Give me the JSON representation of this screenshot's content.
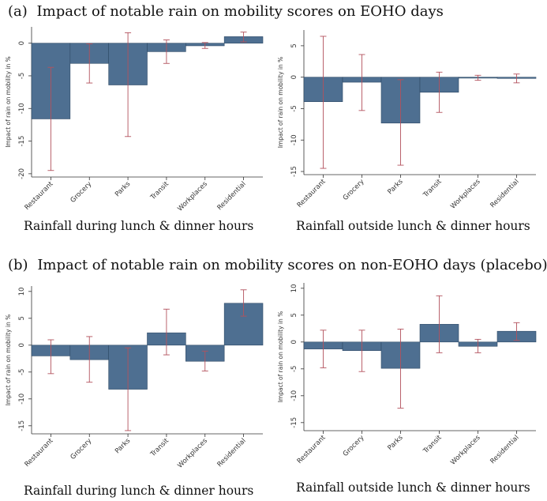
{
  "section_a": {
    "tag": "(a)",
    "title": "Impact of notable rain on mobility scores on EOHO days"
  },
  "section_b": {
    "tag": "(b)",
    "title": "Impact of notable rain on mobility scores on non-EOHO days (placebo)"
  },
  "colors": {
    "bar": "#4e6f91",
    "bar_edge": "#2f4a66",
    "whisker": "#b3525d",
    "axis": "#333333",
    "tick_text": "#333333"
  },
  "chart_data": [
    {
      "type": "bar",
      "panel": "a-left",
      "caption": "Rainfall during lunch & dinner hours",
      "ylabel": "Impact of rain on mobility in %",
      "categories": [
        "Restaurant",
        "Grocery",
        "Parks",
        "Transit",
        "Workplaces",
        "Residential"
      ],
      "values": [
        -11.6,
        -3.1,
        -6.4,
        -1.3,
        -0.4,
        1.0
      ],
      "ci_low": [
        -19.5,
        -6.1,
        -14.3,
        -3.1,
        -0.8,
        0.2
      ],
      "ci_high": [
        -3.7,
        -0.1,
        1.6,
        0.5,
        0.1,
        1.7
      ],
      "ylim": [
        -20.5,
        2.5
      ],
      "yticks": [
        0,
        -5,
        -10,
        -15,
        -20
      ],
      "ytick_labels": [
        "0",
        "-5",
        "-10",
        "-15",
        "-20"
      ]
    },
    {
      "type": "bar",
      "panel": "a-right",
      "caption": "Rainfall outside lunch & dinner hours",
      "ylabel": "Impact of rain on mobility in %",
      "categories": [
        "Restaurant",
        "Grocery",
        "Parks",
        "Transit",
        "Workplaces",
        "Residential"
      ],
      "values": [
        -3.9,
        -0.8,
        -7.3,
        -2.4,
        -0.1,
        -0.2
      ],
      "ci_low": [
        -14.5,
        -5.3,
        -14.0,
        -5.6,
        -0.5,
        -0.9
      ],
      "ci_high": [
        6.5,
        3.6,
        -0.4,
        0.8,
        0.3,
        0.5
      ],
      "ylim": [
        -15.5,
        7.5
      ],
      "yticks": [
        5,
        0,
        -5,
        -10,
        -15
      ],
      "ytick_labels": [
        "5",
        "0",
        "-5",
        "-10",
        "-15"
      ]
    },
    {
      "type": "bar",
      "panel": "b-left",
      "caption": "Rainfall during lunch & dinner hours",
      "ylabel": "Impact of rain on mobility in %",
      "categories": [
        "Restaurant",
        "Grocery",
        "Parks",
        "Transit",
        "Workplaces",
        "Residential"
      ],
      "values": [
        -2.0,
        -2.7,
        -8.2,
        2.3,
        -3.0,
        7.8
      ],
      "ci_low": [
        -5.3,
        -6.9,
        -15.9,
        -1.8,
        -4.8,
        5.4
      ],
      "ci_high": [
        1.0,
        1.6,
        -0.5,
        6.7,
        -1.1,
        10.3
      ],
      "ylim": [
        -16.5,
        11
      ],
      "yticks": [
        10,
        5,
        0,
        -5,
        -10,
        -15
      ],
      "ytick_labels": [
        "10",
        "5",
        "0",
        "-5",
        "-10",
        "-15"
      ]
    },
    {
      "type": "bar",
      "panel": "b-right",
      "caption": "Rainfall outside lunch & dinner hours",
      "ylabel": "Impact of rain on mobility in %",
      "categories": [
        "Restaurant",
        "Grocery",
        "Parks",
        "Transit",
        "Workplaces",
        "Residential"
      ],
      "values": [
        -1.3,
        -1.6,
        -4.9,
        3.3,
        -0.8,
        2.0
      ],
      "ci_low": [
        -4.8,
        -5.5,
        -12.3,
        -2.0,
        -2.0,
        0.3
      ],
      "ci_high": [
        2.2,
        2.2,
        2.4,
        8.6,
        0.5,
        3.6
      ],
      "ylim": [
        -16.5,
        11
      ],
      "yticks": [
        10,
        5,
        0,
        -5,
        -10,
        -15
      ],
      "ytick_labels": [
        "10",
        "5",
        "0",
        "-5",
        "-10",
        "-15"
      ]
    }
  ]
}
